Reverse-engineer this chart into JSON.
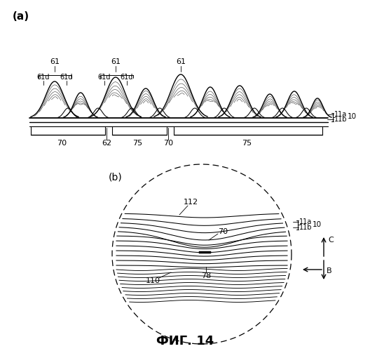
{
  "title": "ФИГ. 14",
  "label_a": "(a)",
  "label_b": "(b)",
  "bg_color": "#ffffff",
  "line_color": "#000000",
  "figure_size": [
    5.28,
    5.0
  ],
  "dpi": 100
}
